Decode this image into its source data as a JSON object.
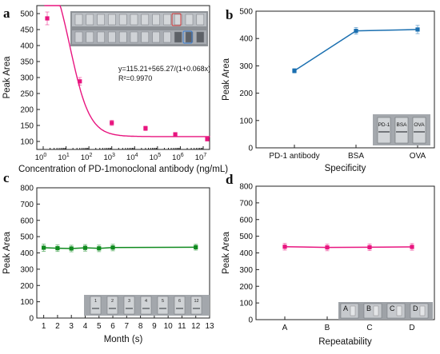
{
  "chart_data": [
    {
      "panel": "a",
      "type": "scatter",
      "xscale": "log",
      "xlabel": "Concentration of PD-1monoclonal antibody (ng/mL)",
      "ylabel": "Peak Area",
      "xlim": [
        1,
        10000000
      ],
      "ylim": [
        75,
        525
      ],
      "yticks": [
        "100",
        "150",
        "200",
        "250",
        "300",
        "350",
        "400",
        "450",
        "500"
      ],
      "xticks": [
        "10^0",
        "10^1",
        "10^2",
        "10^3",
        "10^4",
        "10^5",
        "10^6",
        "10^7"
      ],
      "equation": "y=115.21+565.27/(1+0.068x)",
      "r2": "R²=0.9970",
      "marker_color": "#e8157f",
      "fit_color": "#e8157f",
      "points": [
        {
          "x": 1.5,
          "y": 485,
          "err": 20
        },
        {
          "x": 40,
          "y": 288,
          "err": 12
        },
        {
          "x": 1000,
          "y": 158,
          "err": 8
        },
        {
          "x": 30000,
          "y": 141,
          "err": 7
        },
        {
          "x": 600000,
          "y": 122,
          "err": 6
        },
        {
          "x": 15000000,
          "y": 107,
          "err": 5
        }
      ],
      "inset": "test strip photograph"
    },
    {
      "panel": "b",
      "type": "line",
      "xlabel": "Specificity",
      "ylabel": "Peak Area",
      "ylim": [
        0,
        500
      ],
      "yticks": [
        "0",
        "100",
        "200",
        "300",
        "400",
        "500"
      ],
      "categories": [
        "PD-1 antibody",
        "BSA",
        "OVA"
      ],
      "values": [
        282,
        428,
        433
      ],
      "errors": [
        8,
        12,
        15
      ],
      "line_color": "#1a6fb0",
      "inset_labels": [
        "PD-1",
        "BSA",
        "OVA"
      ]
    },
    {
      "panel": "c",
      "type": "line",
      "xlabel": "Month (s)",
      "ylabel": "Peak Area",
      "ylim": [
        0,
        800
      ],
      "xlim": [
        0.5,
        13
      ],
      "yticks": [
        "0",
        "100",
        "200",
        "300",
        "400",
        "500",
        "600",
        "700",
        "800"
      ],
      "xticks": [
        "1",
        "2",
        "3",
        "4",
        "5",
        "6",
        "7",
        "8",
        "9",
        "10",
        "11",
        "12",
        "13"
      ],
      "x": [
        1,
        2,
        3,
        4,
        5,
        6,
        12
      ],
      "values": [
        432,
        429,
        427,
        431,
        428,
        433,
        435
      ],
      "errors": [
        22,
        20,
        20,
        20,
        20,
        20,
        18
      ],
      "line_color": "#0f8a1e",
      "inset_labels": [
        "1",
        "2",
        "3",
        "4",
        "5",
        "6",
        "12"
      ]
    },
    {
      "panel": "d",
      "type": "line",
      "xlabel": "Repeatability",
      "ylabel": "Peak Area",
      "ylim": [
        0,
        800
      ],
      "yticks": [
        "0",
        "100",
        "200",
        "300",
        "400",
        "500",
        "600",
        "700",
        "800"
      ],
      "categories": [
        "A",
        "B",
        "C",
        "D"
      ],
      "values": [
        437,
        433,
        434,
        436
      ],
      "errors": [
        20,
        20,
        20,
        20
      ],
      "line_color": "#e8157f",
      "inset_labels": [
        "A",
        "B",
        "C",
        "D"
      ]
    }
  ]
}
